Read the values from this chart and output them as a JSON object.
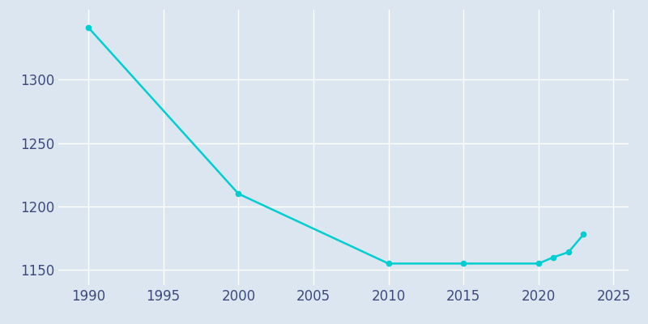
{
  "years": [
    1990,
    2000,
    2010,
    2015,
    2020,
    2021,
    2022,
    2023
  ],
  "population": [
    1341,
    1210,
    1155,
    1155,
    1155,
    1160,
    1164,
    1178
  ],
  "line_color": "#00CED1",
  "marker_color": "#00CED1",
  "background_color": "#dce6f0",
  "grid_color": "#ffffff",
  "xlim": [
    1988,
    2026
  ],
  "ylim": [
    1138,
    1355
  ],
  "xticks": [
    1990,
    1995,
    2000,
    2005,
    2010,
    2015,
    2020,
    2025
  ],
  "yticks": [
    1150,
    1200,
    1250,
    1300
  ],
  "tick_label_color": "#3d4a7a",
  "tick_fontsize": 12,
  "linewidth": 1.8,
  "markersize": 4.5
}
